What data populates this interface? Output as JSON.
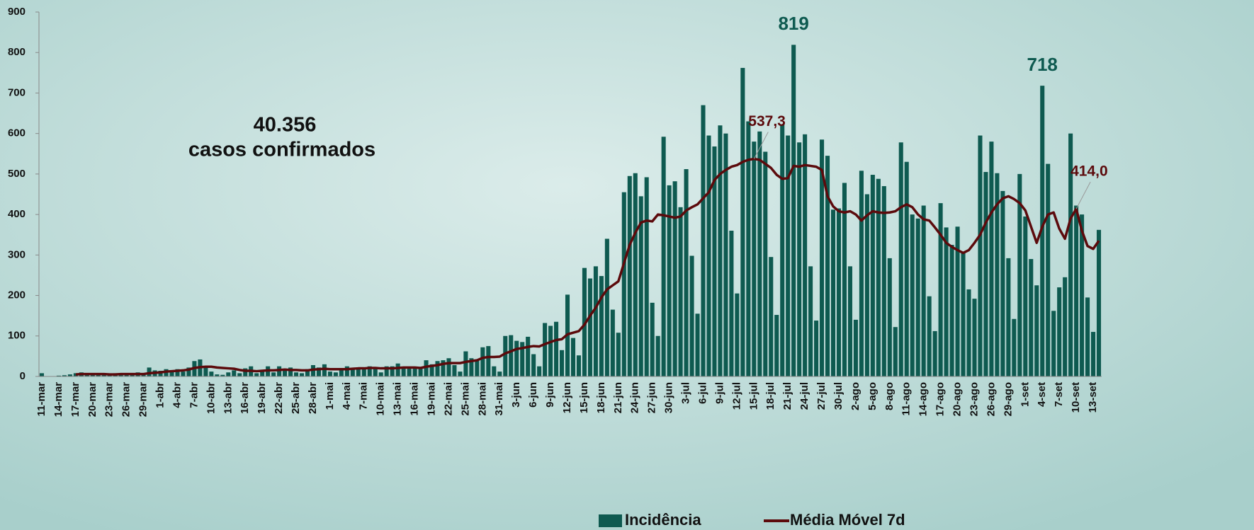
{
  "chart_data": {
    "type": "bar",
    "annotations": [
      "40.356",
      "casos confirmados"
    ],
    "categories": [
      "11-mar",
      null,
      null,
      "14-mar",
      null,
      null,
      "17-mar",
      null,
      null,
      "20-mar",
      null,
      null,
      "23-mar",
      null,
      null,
      "26-mar",
      null,
      null,
      "29-mar",
      null,
      null,
      "1-abr",
      null,
      null,
      "4-abr",
      null,
      null,
      "7-abr",
      null,
      null,
      "10-abr",
      null,
      null,
      "13-abr",
      null,
      null,
      "16-abr",
      null,
      null,
      "19-abr",
      null,
      null,
      "22-abr",
      null,
      null,
      "25-abr",
      null,
      null,
      "28-abr",
      null,
      null,
      "1-mai",
      null,
      null,
      "4-mai",
      null,
      null,
      "7-mai",
      null,
      null,
      "10-mai",
      null,
      null,
      "13-mai",
      null,
      null,
      "16-mai",
      null,
      null,
      "19-mai",
      null,
      null,
      "22-mai",
      null,
      null,
      "25-mai",
      null,
      null,
      "28-mai",
      null,
      null,
      "31-mai",
      null,
      null,
      "3-jun",
      null,
      null,
      "6-jun",
      null,
      null,
      "9-jun",
      null,
      null,
      "12-jun",
      null,
      null,
      "15-jun",
      null,
      null,
      "18-jun",
      null,
      null,
      "21-jun",
      null,
      null,
      "24-jun",
      null,
      null,
      "27-jun",
      null,
      null,
      "30-jun",
      null,
      null,
      "3-jul",
      null,
      null,
      "6-jul",
      null,
      null,
      "9-jul",
      null,
      null,
      "12-jul",
      null,
      null,
      "15-jul",
      null,
      null,
      "18-jul",
      null,
      null,
      "21-jul",
      null,
      null,
      "24-jul",
      null,
      null,
      "27-jul",
      null,
      null,
      "30-jul",
      null,
      null,
      "2-ago",
      null,
      null,
      "5-ago",
      null,
      null,
      "8-ago",
      null,
      null,
      "11-ago",
      null,
      null,
      "14-ago",
      null,
      null,
      "17-ago",
      null,
      null,
      "20-ago",
      null,
      null,
      "23-ago",
      null,
      null,
      "26-ago",
      null,
      null,
      "29-ago",
      null,
      null,
      "1-set",
      null,
      null,
      "4-set",
      null,
      null,
      "7-set",
      null,
      null,
      "10-set",
      null,
      null,
      "13-set",
      null
    ],
    "series": [
      {
        "name": "Incidência",
        "type": "bar",
        "color": "#0e5a50",
        "values": [
          8,
          0,
          0,
          2,
          3,
          5,
          8,
          10,
          6,
          5,
          8,
          4,
          6,
          8,
          5,
          4,
          6,
          10,
          8,
          22,
          15,
          14,
          18,
          15,
          18,
          12,
          22,
          38,
          42,
          25,
          12,
          5,
          4,
          10,
          15,
          8,
          20,
          25,
          8,
          12,
          25,
          10,
          25,
          18,
          22,
          10,
          8,
          18,
          28,
          22,
          30,
          12,
          10,
          18,
          25,
          20,
          22,
          18,
          25,
          20,
          10,
          25,
          25,
          32,
          22,
          20,
          22,
          20,
          40,
          30,
          38,
          40,
          45,
          28,
          12,
          62,
          45,
          42,
          72,
          75,
          25,
          12,
          100,
          102,
          88,
          85,
          98,
          55,
          25,
          132,
          125,
          135,
          65,
          202,
          95,
          52,
          268,
          242,
          272,
          248,
          340,
          165,
          108,
          455,
          495,
          502,
          445,
          492,
          182,
          100,
          592,
          472,
          482,
          418,
          512,
          298,
          155,
          670,
          595,
          568,
          620,
          600,
          360,
          205,
          762,
          630,
          580,
          605,
          555,
          295,
          152,
          622,
          595,
          819,
          578,
          598,
          272,
          138,
          585,
          545,
          412,
          415,
          478,
          272,
          140,
          508,
          450,
          498,
          488,
          470,
          292,
          122,
          578,
          530,
          400,
          390,
          422,
          198,
          112,
          428,
          368,
          325,
          370,
          308,
          215,
          192,
          595,
          505,
          580,
          502,
          458,
          292,
          142,
          500,
          395,
          290,
          225,
          718,
          525,
          162,
          220,
          245,
          600,
          422,
          400,
          195,
          110,
          362
        ],
        "value_labels": [
          null,
          null,
          null,
          null,
          null,
          null,
          null,
          null,
          null,
          null,
          null,
          null,
          null,
          null,
          null,
          null,
          null,
          null,
          null,
          null,
          null,
          null,
          null,
          null,
          null,
          null,
          null,
          null,
          null,
          null,
          null,
          null,
          null,
          null,
          null,
          null,
          null,
          null,
          null,
          null,
          null,
          null,
          null,
          null,
          null,
          null,
          null,
          null,
          null,
          null,
          null,
          null,
          null,
          null,
          null,
          null,
          null,
          null,
          null,
          null,
          null,
          null,
          null,
          null,
          null,
          null,
          null,
          null,
          null,
          null,
          null,
          null,
          null,
          null,
          null,
          null,
          null,
          null,
          null,
          null,
          null,
          null,
          null,
          null,
          null,
          null,
          null,
          null,
          null,
          null,
          null,
          null,
          null,
          null,
          null,
          null,
          null,
          null,
          null,
          null,
          null,
          null,
          null,
          null,
          null,
          null,
          null,
          null,
          null,
          null,
          null,
          null,
          null,
          null,
          null,
          null,
          null,
          null,
          null,
          null,
          null,
          null,
          null,
          null,
          null,
          null,
          null,
          null,
          null,
          null,
          null,
          null,
          null,
          "819",
          null,
          null,
          null,
          null,
          null,
          null,
          null,
          null,
          null,
          null,
          null,
          null,
          null,
          null,
          null,
          null,
          null,
          null,
          null,
          null,
          null,
          null,
          null,
          null,
          null,
          null,
          null,
          null,
          null,
          null,
          null,
          null,
          null,
          null,
          null,
          null,
          null,
          null,
          null,
          null,
          null,
          null,
          null,
          "718",
          null,
          null,
          null,
          null,
          null,
          null,
          null,
          null,
          null,
          null
        ]
      },
      {
        "name": "Média Móvel 7d",
        "type": "line",
        "color": "#5c0a0c",
        "values": [
          null,
          null,
          null,
          null,
          null,
          null,
          5,
          6,
          6,
          6,
          6,
          6,
          5,
          5,
          6,
          6,
          6,
          6,
          6,
          8,
          9,
          10,
          12,
          13,
          14,
          15,
          17,
          21,
          23,
          24,
          24,
          22,
          21,
          20,
          19,
          16,
          14,
          14,
          13,
          14,
          15,
          15,
          16,
          17,
          16,
          16,
          15,
          15,
          17,
          18,
          19,
          18,
          18,
          18,
          18,
          19,
          20,
          20,
          21,
          21,
          20,
          20,
          20,
          21,
          22,
          22,
          22,
          21,
          24,
          26,
          28,
          31,
          33,
          33,
          33,
          36,
          38,
          40,
          46,
          48,
          48,
          49,
          57,
          62,
          68,
          70,
          73,
          75,
          74,
          80,
          85,
          90,
          92,
          104,
          108,
          112,
          128,
          150,
          170,
          195,
          215,
          225,
          235,
          280,
          325,
          355,
          380,
          385,
          383,
          400,
          398,
          395,
          392,
          395,
          410,
          418,
          425,
          440,
          455,
          485,
          500,
          510,
          518,
          522,
          530,
          535,
          537.3,
          535,
          525,
          515,
          498,
          488,
          490,
          520,
          518,
          522,
          520,
          518,
          510,
          445,
          420,
          408,
          405,
          408,
          400,
          385,
          398,
          408,
          405,
          404,
          405,
          408,
          418,
          425,
          418,
          400,
          388,
          385,
          368,
          350,
          330,
          320,
          312,
          305,
          312,
          330,
          350,
          380,
          405,
          425,
          440,
          445,
          438,
          428,
          410,
          370,
          330,
          370,
          400,
          405,
          365,
          340,
          390,
          414.0,
          360,
          322,
          315,
          335
        ],
        "value_labels": [
          null,
          null,
          null,
          null,
          null,
          null,
          null,
          null,
          null,
          null,
          null,
          null,
          null,
          null,
          null,
          null,
          null,
          null,
          null,
          null,
          null,
          null,
          null,
          null,
          null,
          null,
          null,
          null,
          null,
          null,
          null,
          null,
          null,
          null,
          null,
          null,
          null,
          null,
          null,
          null,
          null,
          null,
          null,
          null,
          null,
          null,
          null,
          null,
          null,
          null,
          null,
          null,
          null,
          null,
          null,
          null,
          null,
          null,
          null,
          null,
          null,
          null,
          null,
          null,
          null,
          null,
          null,
          null,
          null,
          null,
          null,
          null,
          null,
          null,
          null,
          null,
          null,
          null,
          null,
          null,
          null,
          null,
          null,
          null,
          null,
          null,
          null,
          null,
          null,
          null,
          null,
          null,
          null,
          null,
          null,
          null,
          null,
          null,
          null,
          null,
          null,
          null,
          null,
          null,
          null,
          null,
          null,
          null,
          null,
          null,
          null,
          null,
          null,
          null,
          null,
          null,
          null,
          null,
          null,
          null,
          null,
          null,
          null,
          null,
          null,
          null,
          "537,3",
          null,
          null,
          null,
          null,
          null,
          null,
          null,
          null,
          null,
          null,
          null,
          null,
          null,
          null,
          null,
          null,
          null,
          null,
          null,
          null,
          null,
          null,
          null,
          null,
          null,
          null,
          null,
          null,
          null,
          null,
          null,
          null,
          null,
          null,
          null,
          null,
          null,
          null,
          null,
          null,
          null,
          null,
          null,
          null,
          null,
          null,
          null,
          null,
          null,
          null,
          null,
          null,
          null,
          null,
          null,
          null,
          "414,0",
          null,
          null,
          null,
          null
        ]
      }
    ],
    "ylim": [
      0,
      900
    ],
    "yticks": [
      0,
      100,
      200,
      300,
      400,
      500,
      600,
      700,
      800,
      900
    ],
    "legend": "bottom"
  }
}
